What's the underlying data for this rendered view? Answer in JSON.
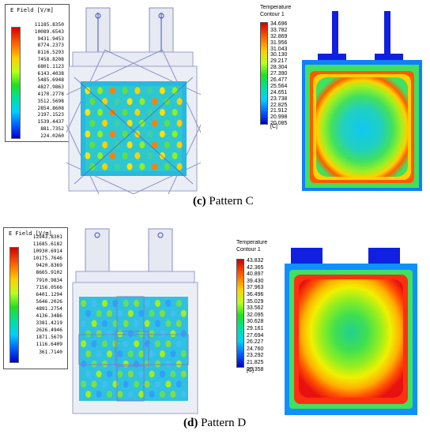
{
  "pattern_c": {
    "efield_legend": {
      "title": "E Field [V/m]",
      "values": [
        "11185.8350",
        "10089.6543",
        "9431.9453",
        "8774.2373",
        "8116.5293",
        "7458.8208",
        "6801.1123",
        "6143.4038",
        "5485.6948",
        "4827.9863",
        "4170.2778",
        "3512.5698",
        "2854.8608",
        "2197.1523",
        "1539.4437",
        "881.7352",
        "224.0260"
      ]
    },
    "temp_legend": {
      "title": "Temperature",
      "subtitle": "Contour 1",
      "values": [
        "34.696",
        "33.782",
        "32.869",
        "31.956",
        "31.043",
        "30.130",
        "29.217",
        "28.304",
        "27.390",
        "26.477",
        "25.564",
        "24.651",
        "23.738",
        "22.825",
        "21.912",
        "20.998",
        "20.085"
      ],
      "unit": "[C]"
    },
    "caption_label": "(c)",
    "caption_text": " Pattern C"
  },
  "pattern_d": {
    "efield_legend": {
      "title": "E Field [V/m]",
      "values": [
        "12943.8301",
        "11685.6182",
        "10930.6914",
        "10175.7646",
        "9420.8369",
        "8665.9102",
        "7910.9834",
        "7156.0566",
        "6401.1294",
        "5646.2026",
        "4891.2754",
        "4136.3486",
        "3381.4219",
        "2626.4946",
        "1871.5679",
        "1116.6409",
        "361.7140"
      ]
    },
    "temp_legend": {
      "title": "Temperature",
      "subtitle": "Contour 1",
      "values": [
        "43.832",
        "42.365",
        "40.897",
        "39.430",
        "37.963",
        "36.496",
        "35.029",
        "33.562",
        "32.095",
        "30.628",
        "29.161",
        "27.694",
        "26.227",
        "24.760",
        "23.292",
        "21.825",
        "20.358"
      ],
      "unit": "[C]"
    },
    "caption_label": "(d)",
    "caption_text": " Pattern D"
  }
}
